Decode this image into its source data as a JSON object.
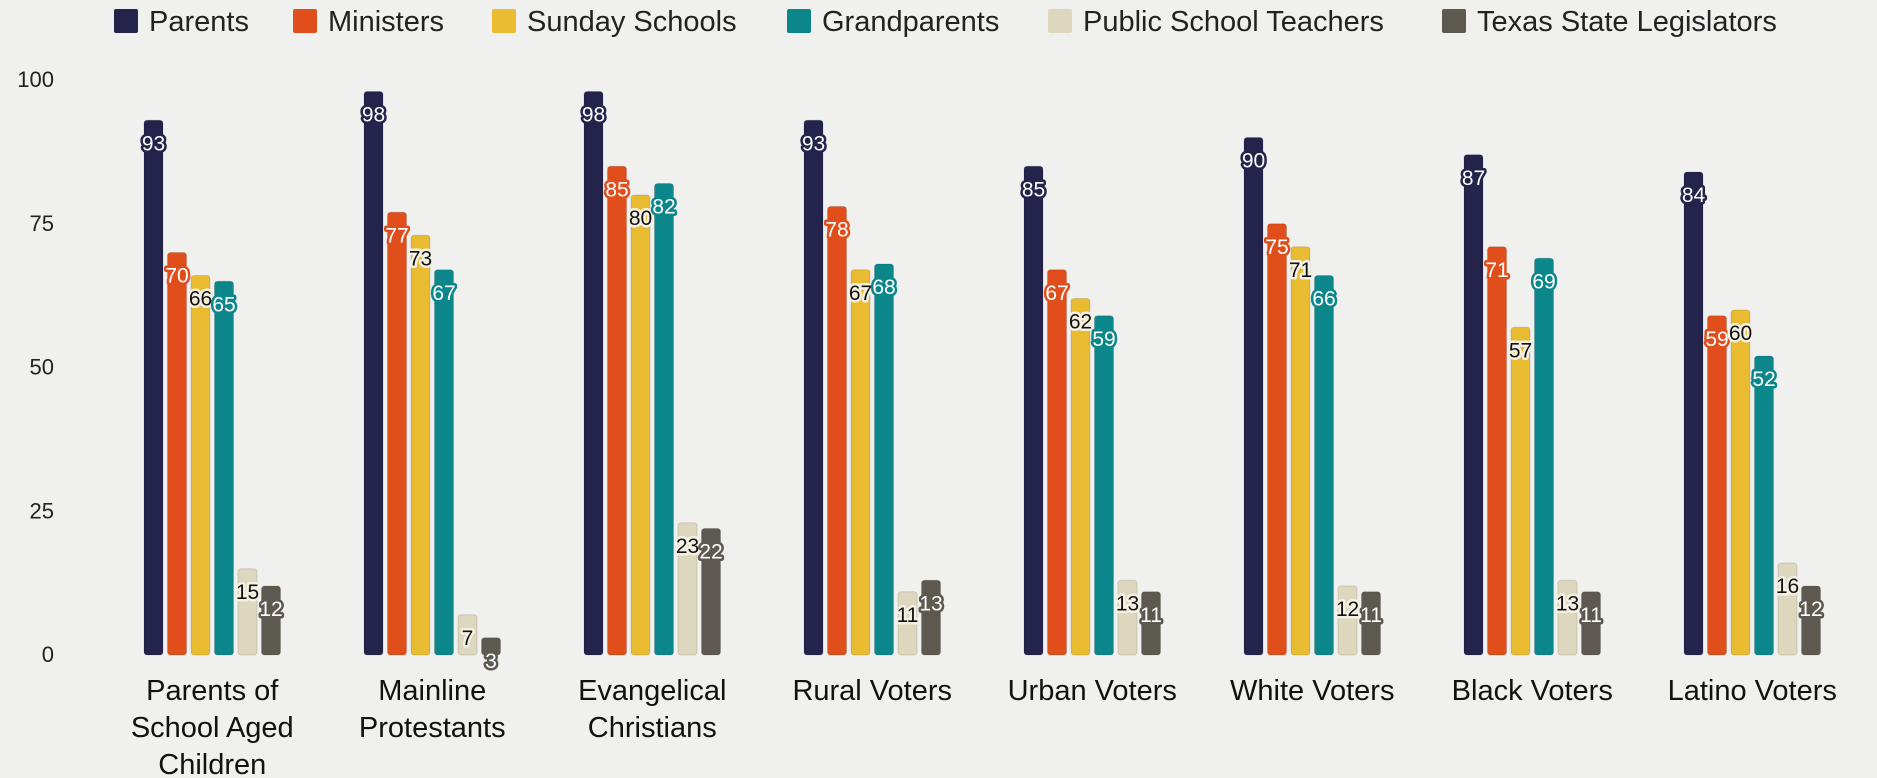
{
  "chart_data": {
    "type": "bar",
    "title": "",
    "xlabel": "",
    "ylabel": "",
    "ylim": [
      0,
      100
    ],
    "yticks": [
      0,
      25,
      50,
      75,
      100
    ],
    "grid": false,
    "legend_position": "top",
    "categories": [
      [
        "Parents of",
        "School Aged",
        "Children"
      ],
      [
        "Mainline",
        "Protestants"
      ],
      [
        "Evangelical",
        "Christians"
      ],
      [
        "Rural Voters"
      ],
      [
        "Urban Voters"
      ],
      [
        "White Voters"
      ],
      [
        "Black Voters"
      ],
      [
        "Latino Voters"
      ]
    ],
    "series": [
      {
        "name": "Parents",
        "color": "#23234b",
        "label_color": "#ffffff",
        "values": [
          93,
          98,
          98,
          93,
          85,
          90,
          87,
          84
        ]
      },
      {
        "name": "Ministers",
        "color": "#e04e1b",
        "label_color": "#ffffff",
        "values": [
          70,
          77,
          85,
          78,
          67,
          75,
          71,
          59
        ]
      },
      {
        "name": "Sunday Schools",
        "color": "#e8bb30",
        "label_color": "#111111",
        "values": [
          66,
          73,
          80,
          67,
          62,
          71,
          57,
          60
        ]
      },
      {
        "name": "Grandparents",
        "color": "#0b878c",
        "label_color": "#ffffff",
        "values": [
          65,
          67,
          82,
          68,
          59,
          66,
          69,
          52
        ]
      },
      {
        "name": "Public School Teachers",
        "color": "#ddd7bd",
        "label_color": "#111111",
        "values": [
          15,
          7,
          23,
          11,
          13,
          12,
          13,
          16
        ]
      },
      {
        "name": "Texas State Legislators",
        "color": "#5d5850",
        "label_color": "#ffffff",
        "values": [
          12,
          3,
          22,
          13,
          11,
          11,
          11,
          12
        ]
      }
    ]
  }
}
